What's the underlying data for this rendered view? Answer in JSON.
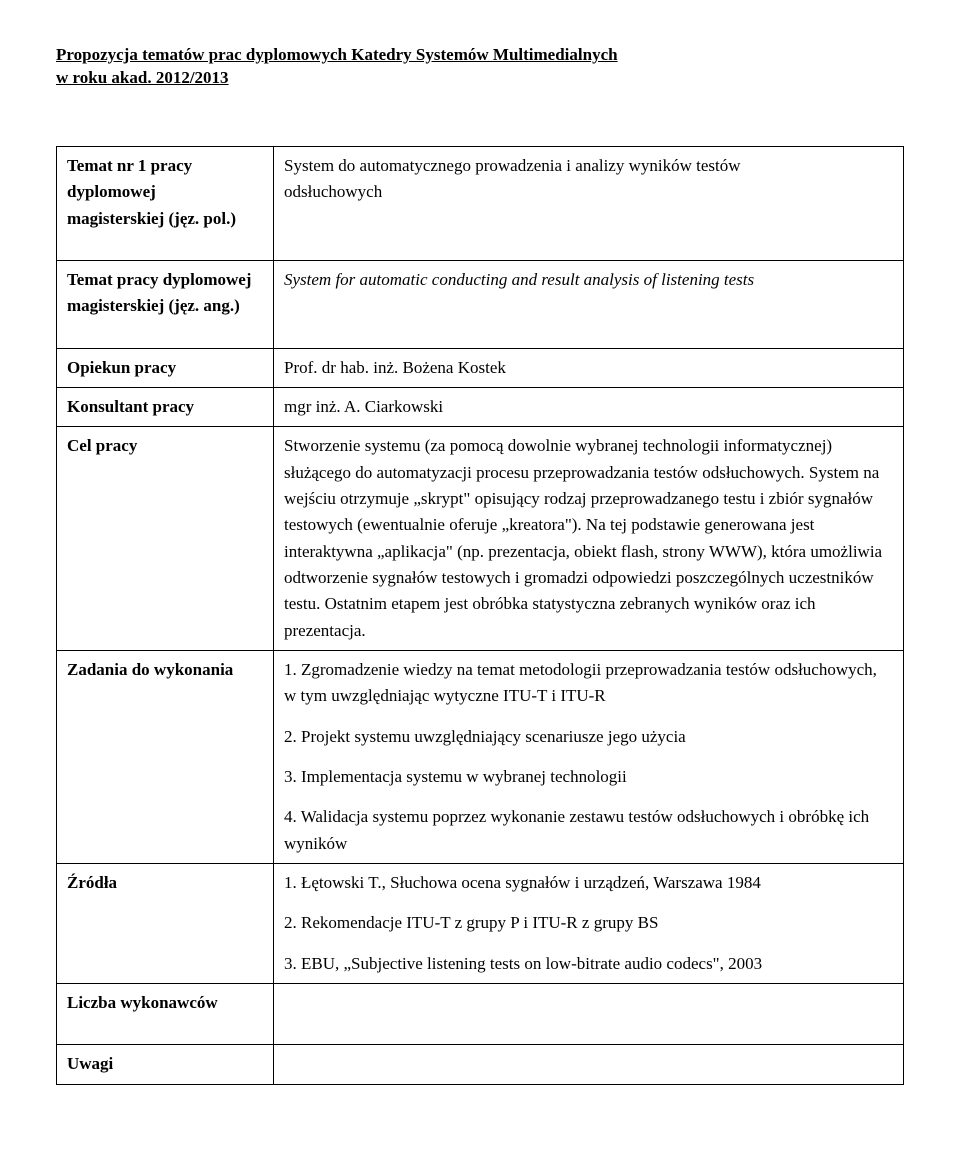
{
  "title_line1": "Propozycja tematów prac dyplomowych Katedry Systemów Multimedialnych",
  "title_line2": "w roku  akad. 2012/2013",
  "rows": {
    "r1_label_l1": "Temat nr 1 pracy",
    "r1_label_l2": "dyplomowej",
    "r1_label_l3": "magisterskiej (jęz. pol.)",
    "r1_val_l1": "System do automatycznego prowadzenia i analizy wyników testów",
    "r1_val_l2": "odsłuchowych",
    "r2_label_l1": "Temat pracy dyplomowej",
    "r2_label_l2": "magisterskiej (jęz. ang.)",
    "r2_val": "System for automatic conducting and result analysis of listening tests",
    "r3_label": "Opiekun pracy",
    "r3_val": "Prof. dr hab. inż. Bożena Kostek",
    "r4_label": "Konsultant pracy",
    "r4_val": "mgr inż. A. Ciarkowski",
    "r5_label": "Cel pracy",
    "r5_val": "Stworzenie systemu (za pomocą dowolnie wybranej technologii informatycznej) służącego do automatyzacji procesu przeprowadzania testów odsłuchowych. System na wejściu otrzymuje „skrypt\" opisujący rodzaj przeprowadzanego testu i zbiór sygnałów testowych (ewentualnie oferuje „kreatora\"). Na tej podstawie generowana jest interaktywna „aplikacja\" (np. prezentacja, obiekt flash, strony WWW), która umożliwia odtworzenie sygnałów testowych i gromadzi odpowiedzi poszczególnych uczestników testu. Ostatnim etapem jest obróbka statystyczna zebranych wyników oraz ich prezentacja.",
    "r6_label": "Zadania do wykonania",
    "r6_p1": "1. Zgromadzenie wiedzy na temat metodologii przeprowadzania testów odsłuchowych, w tym uwzględniając wytyczne ITU-T i ITU-R",
    "r6_p2": "2. Projekt systemu uwzględniający scenariusze jego użycia",
    "r6_p3": "3. Implementacja systemu w wybranej technologii",
    "r6_p4": "4. Walidacja systemu poprzez wykonanie zestawu testów odsłuchowych i obróbkę ich wyników",
    "r7_label": "Źródła",
    "r7_p1": "1. Łętowski T., Słuchowa ocena sygnałów i urządzeń, Warszawa 1984",
    "r7_p2": "2. Rekomendacje ITU-T z grupy P i ITU-R z grupy BS",
    "r7_p3": "3. EBU, „Subjective listening tests on low-bitrate audio codecs\", 2003",
    "r8_label": "Liczba wykonawców",
    "r8_val": "",
    "r9_label": "Uwagi",
    "r9_val": ""
  }
}
